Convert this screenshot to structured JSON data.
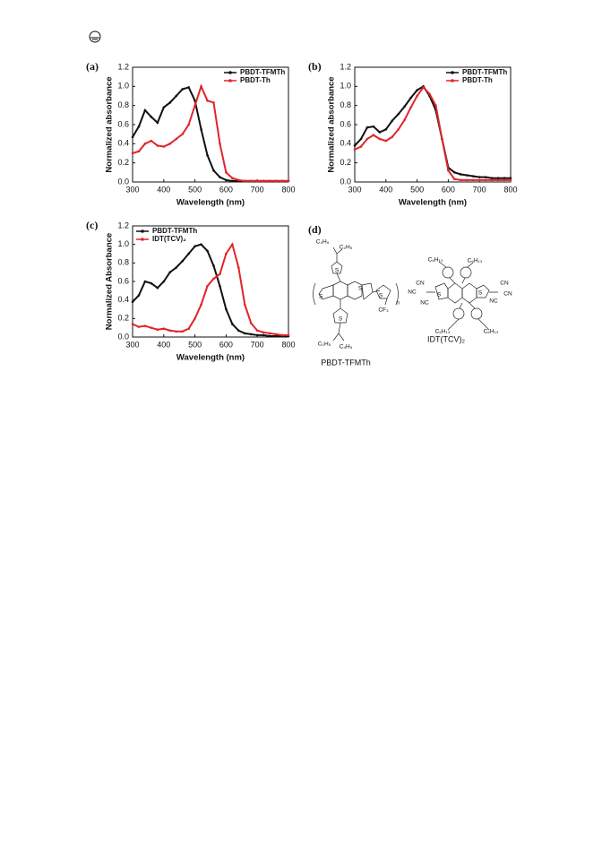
{
  "chart_data": [
    {
      "type": "line",
      "label": "(a)",
      "xlabel": "Wavelength (nm)",
      "ylabel": "Normalized absorbance",
      "x": [
        300,
        320,
        340,
        360,
        380,
        400,
        420,
        440,
        460,
        480,
        500,
        520,
        540,
        560,
        580,
        600,
        620,
        640,
        660,
        680,
        700,
        720,
        740,
        760,
        780,
        800
      ],
      "series": [
        {
          "name": "PBDT-TFMTh",
          "color": "#111111",
          "values": [
            0.47,
            0.58,
            0.75,
            0.68,
            0.62,
            0.78,
            0.83,
            0.9,
            0.97,
            0.99,
            0.85,
            0.55,
            0.28,
            0.12,
            0.05,
            0.02,
            0.01,
            0.01,
            0.01,
            0.01,
            0.01,
            0.01,
            0.01,
            0.01,
            0.01,
            0.01
          ]
        },
        {
          "name": "PBDT-Th",
          "color": "#e0252b",
          "values": [
            0.3,
            0.32,
            0.4,
            0.43,
            0.38,
            0.37,
            0.4,
            0.45,
            0.5,
            0.6,
            0.8,
            1.0,
            0.85,
            0.83,
            0.4,
            0.1,
            0.04,
            0.02,
            0.01,
            0.01,
            0.01,
            0.01,
            0.01,
            0.01,
            0.01,
            0.01
          ]
        }
      ],
      "xlim": [
        300,
        800
      ],
      "xticks": [
        300,
        400,
        500,
        600,
        700,
        800
      ],
      "ylim": [
        0,
        1.2
      ],
      "yticks": [
        {
          "value": 0,
          "label": "0.0"
        },
        0.2,
        0.4,
        0.6,
        0.8,
        {
          "value": 1,
          "label": "1.0"
        },
        1.2
      ],
      "legend": "upper right"
    },
    {
      "type": "line",
      "label": "(b)",
      "xlabel": "Wavelength (nm)",
      "ylabel": "Normalized absorbance",
      "x": [
        300,
        320,
        340,
        360,
        380,
        400,
        420,
        440,
        460,
        480,
        500,
        520,
        540,
        560,
        580,
        600,
        620,
        640,
        660,
        680,
        700,
        720,
        740,
        760,
        780,
        800
      ],
      "series": [
        {
          "name": "PBDT-TFMTh",
          "color": "#111111",
          "values": [
            0.38,
            0.45,
            0.57,
            0.58,
            0.52,
            0.55,
            0.64,
            0.71,
            0.79,
            0.88,
            0.96,
            1.0,
            0.9,
            0.75,
            0.45,
            0.15,
            0.1,
            0.08,
            0.07,
            0.06,
            0.05,
            0.05,
            0.04,
            0.04,
            0.04,
            0.04
          ]
        },
        {
          "name": "PBDT-Th",
          "color": "#e0252b",
          "values": [
            0.34,
            0.37,
            0.45,
            0.49,
            0.45,
            0.43,
            0.47,
            0.55,
            0.65,
            0.78,
            0.9,
            0.99,
            0.92,
            0.8,
            0.45,
            0.12,
            0.03,
            0.02,
            0.02,
            0.02,
            0.02,
            0.02,
            0.02,
            0.02,
            0.02,
            0.02
          ]
        }
      ],
      "xlim": [
        300,
        800
      ],
      "xticks": [
        300,
        400,
        500,
        600,
        700,
        800
      ],
      "ylim": [
        0,
        1.2
      ],
      "yticks": [
        {
          "value": 0,
          "label": "0.0"
        },
        0.2,
        0.4,
        0.6,
        0.8,
        {
          "value": 1,
          "label": "1.0"
        },
        1.2
      ],
      "legend": "upper right"
    },
    {
      "type": "line",
      "label": "(c)",
      "xlabel": "Wavelength (nm)",
      "ylabel": "Normalized Absorbance",
      "x": [
        300,
        320,
        340,
        360,
        380,
        400,
        420,
        440,
        460,
        480,
        500,
        520,
        540,
        560,
        580,
        600,
        620,
        640,
        660,
        680,
        700,
        720,
        740,
        760,
        780,
        800
      ],
      "series": [
        {
          "name": "PBDT-TFMTh",
          "color": "#111111",
          "values": [
            0.38,
            0.45,
            0.6,
            0.58,
            0.53,
            0.6,
            0.7,
            0.75,
            0.82,
            0.9,
            0.98,
            1.0,
            0.93,
            0.77,
            0.55,
            0.3,
            0.14,
            0.07,
            0.04,
            0.03,
            0.02,
            0.02,
            0.01,
            0.01,
            0.01,
            0.01
          ]
        },
        {
          "name": "IDT(TCV)₂",
          "color": "#e0252b",
          "values": [
            0.14,
            0.11,
            0.12,
            0.1,
            0.08,
            0.09,
            0.07,
            0.06,
            0.06,
            0.09,
            0.2,
            0.35,
            0.55,
            0.63,
            0.68,
            0.9,
            1.0,
            0.75,
            0.35,
            0.15,
            0.07,
            0.05,
            0.04,
            0.03,
            0.02,
            0.02
          ]
        }
      ],
      "xlim": [
        300,
        800
      ],
      "xticks": [
        300,
        400,
        500,
        600,
        700,
        800
      ],
      "ylim": [
        0,
        1.2
      ],
      "yticks": [
        {
          "value": 0,
          "label": "0.0"
        },
        0.2,
        0.4,
        0.6,
        0.8,
        {
          "value": 1,
          "label": "1.0"
        },
        1.2
      ],
      "legend": "upper left"
    }
  ],
  "structure": {
    "label": "(d)",
    "molecules": [
      {
        "name": "PBDT-TFMTh",
        "atoms": [
          "C₄H₉",
          "C₂H₅",
          "S",
          "S",
          "S",
          "S",
          "n",
          "CF₃",
          "S",
          "C₂H₅",
          "C₄H₉"
        ]
      },
      {
        "name": "IDT(TCV)₂",
        "atoms": [
          "C₆H₁₃",
          "C₆H₁₃",
          "CN",
          "NC",
          "S",
          "NC",
          "S",
          "CN",
          "CN",
          "NC",
          "C₆H₁₃",
          "C₆H₁₃"
        ]
      }
    ]
  }
}
